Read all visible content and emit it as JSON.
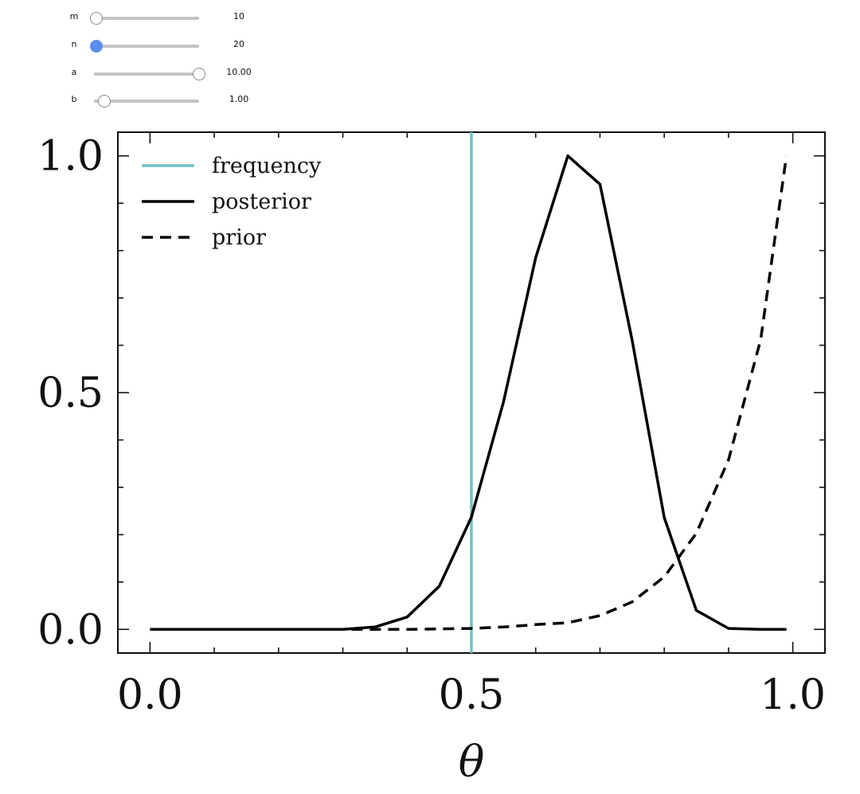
{
  "controls": {
    "sliders": [
      {
        "name": "m",
        "label": "m",
        "value": "10",
        "fraction": 0.02,
        "active": false
      },
      {
        "name": "n",
        "label": "n",
        "value": "20",
        "fraction": 0.02,
        "active": true
      },
      {
        "name": "a",
        "label": "a",
        "value": "10.00",
        "fraction": 1.0,
        "active": false
      },
      {
        "name": "b",
        "label": "b",
        "value": "1.00",
        "fraction": 0.1,
        "active": false
      }
    ]
  },
  "chart_data": {
    "type": "line",
    "title": "",
    "xlabel": "θ",
    "ylabel": "",
    "xlim": [
      -0.05,
      1.05
    ],
    "ylim": [
      -0.05,
      1.05
    ],
    "xticks": [
      0.0,
      0.5,
      1.0
    ],
    "xtick_labels": [
      "0.0",
      "0.5",
      "1.0"
    ],
    "yticks": [
      0.0,
      0.5,
      1.0
    ],
    "ytick_labels": [
      "0.0",
      "0.5",
      "1.0"
    ],
    "grid": false,
    "legend_position": "top-left",
    "series": [
      {
        "name": "frequency",
        "style": "solid",
        "color": "#6cc2c0",
        "kind": "vline",
        "x": 0.5
      },
      {
        "name": "posterior",
        "style": "solid",
        "color": "#000000",
        "x": [
          0.0,
          0.05,
          0.1,
          0.15,
          0.2,
          0.25,
          0.3,
          0.35,
          0.4,
          0.45,
          0.5,
          0.55,
          0.6,
          0.65,
          0.7,
          0.75,
          0.8,
          0.85,
          0.9,
          0.95,
          0.99
        ],
        "y": [
          0.0,
          0.0,
          0.0,
          0.0,
          0.0,
          0.0,
          0.0,
          0.005,
          0.026,
          0.091,
          0.237,
          0.481,
          0.785,
          1.0,
          0.94,
          0.611,
          0.236,
          0.04,
          0.002,
          0.0,
          0.0
        ]
      },
      {
        "name": "prior",
        "style": "dashed",
        "color": "#000000",
        "x": [
          0.0,
          0.05,
          0.1,
          0.15,
          0.2,
          0.25,
          0.3,
          0.35,
          0.4,
          0.45,
          0.5,
          0.55,
          0.6,
          0.65,
          0.7,
          0.75,
          0.8,
          0.85,
          0.9,
          0.95,
          0.99
        ],
        "y": [
          0.0,
          0.0,
          0.0,
          0.0,
          0.0,
          0.0,
          0.0,
          0.0,
          0.0,
          0.001,
          0.002,
          0.005,
          0.01,
          0.014,
          0.029,
          0.058,
          0.111,
          0.203,
          0.358,
          0.612,
          1.0
        ]
      }
    ]
  }
}
